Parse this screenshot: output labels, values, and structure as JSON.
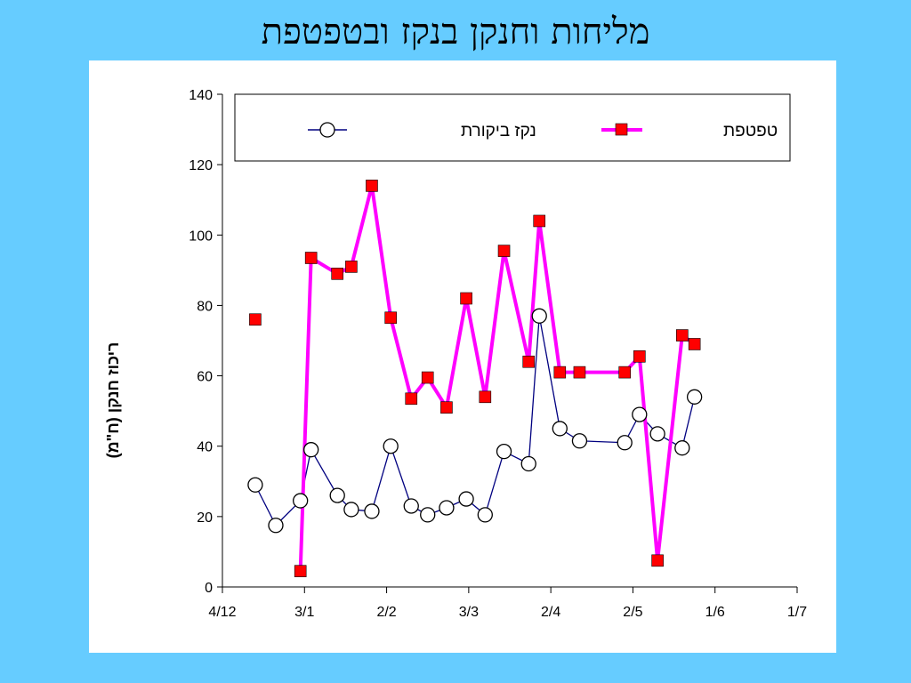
{
  "slide": {
    "title": "מליחות וחנקן בנקז ובטפטפת"
  },
  "colors": {
    "background": "#66ccff",
    "panel": "#ffffff",
    "control_line": "#000080",
    "drip_line": "#ff00ff",
    "drip_marker": "#ff0000"
  },
  "chart_data": {
    "type": "line",
    "xlabel": "",
    "ylabel": "ריכוז חנקן (ח\"מ)",
    "ylim": [
      0,
      140
    ],
    "yticks": [
      0,
      20,
      40,
      60,
      80,
      100,
      120,
      140
    ],
    "xlim": [
      0,
      7
    ],
    "xticks": [
      {
        "value": 0,
        "label": "4/12"
      },
      {
        "value": 1,
        "label": "3/1"
      },
      {
        "value": 2,
        "label": "2/2"
      },
      {
        "value": 3,
        "label": "3/3"
      },
      {
        "value": 4,
        "label": "2/4"
      },
      {
        "value": 5,
        "label": "2/5"
      },
      {
        "value": 6,
        "label": "1/6"
      },
      {
        "value": 7,
        "label": "1/7"
      }
    ],
    "legend": "top-inside",
    "grid": false,
    "series": [
      {
        "name": "נקז ביקורת",
        "marker": "circle",
        "color": "#000080",
        "points": [
          [
            0.4,
            29
          ],
          [
            0.65,
            17.5
          ],
          [
            0.95,
            24.5
          ],
          [
            1.08,
            39
          ],
          [
            1.4,
            26
          ],
          [
            1.57,
            22
          ],
          [
            1.82,
            21.5
          ],
          [
            2.05,
            40
          ],
          [
            2.3,
            23
          ],
          [
            2.5,
            20.5
          ],
          [
            2.73,
            22.5
          ],
          [
            2.97,
            25
          ],
          [
            3.2,
            20.5
          ],
          [
            3.43,
            38.5
          ],
          [
            3.73,
            35
          ],
          [
            3.86,
            77
          ],
          [
            4.11,
            45
          ],
          [
            4.35,
            41.5
          ],
          [
            4.9,
            41
          ],
          [
            5.08,
            49
          ],
          [
            5.3,
            43.5
          ],
          [
            5.6,
            39.5
          ],
          [
            5.75,
            54
          ]
        ]
      },
      {
        "name": "טפטפת",
        "marker": "square",
        "color": "#ff00ff",
        "segments": [
          [
            [
              0.4,
              76
            ]
          ],
          [
            [
              0.95,
              4.5
            ],
            [
              1.08,
              93.5
            ],
            [
              1.4,
              89
            ],
            [
              1.57,
              91
            ],
            [
              1.82,
              114
            ],
            [
              2.05,
              76.5
            ],
            [
              2.3,
              53.5
            ],
            [
              2.5,
              59.5
            ],
            [
              2.73,
              51
            ],
            [
              2.97,
              82
            ],
            [
              3.2,
              54
            ],
            [
              3.43,
              95.5
            ],
            [
              3.73,
              64
            ],
            [
              3.86,
              104
            ],
            [
              4.11,
              61
            ],
            [
              4.35,
              61
            ],
            [
              4.9,
              61
            ],
            [
              5.08,
              65.5
            ],
            [
              5.3,
              7.5
            ],
            [
              5.6,
              71.5
            ],
            [
              5.75,
              69
            ]
          ]
        ]
      }
    ]
  }
}
